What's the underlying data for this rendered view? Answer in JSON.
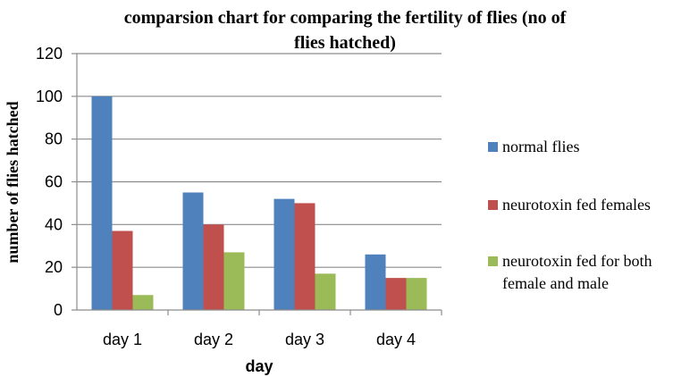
{
  "chart_data": {
    "type": "bar",
    "title": "comparsion chart for comparing the fertility of flies (no of flies hatched)",
    "title_lines": [
      "comparsion chart for comparing the fertility of flies (no of",
      "flies hatched)"
    ],
    "xlabel": "day",
    "ylabel": "number of flies hatched",
    "categories": [
      "day 1",
      "day 2",
      "day 3",
      "day 4"
    ],
    "ylim": [
      0,
      120
    ],
    "yticks": [
      0,
      20,
      40,
      60,
      80,
      100,
      120
    ],
    "grid": true,
    "legend_position": "right",
    "series": [
      {
        "name": "normal flies",
        "name_lines": [
          "normal flies"
        ],
        "color": "#4F81BD",
        "values": [
          100,
          55,
          52,
          26
        ]
      },
      {
        "name": "neurotoxin fed females",
        "name_lines": [
          "neurotoxin fed females"
        ],
        "color": "#C0504D",
        "values": [
          37,
          40,
          50,
          15
        ]
      },
      {
        "name": "neurotoxin fed for both female and male",
        "name_lines": [
          "neurotoxin fed for both",
          "female and male"
        ],
        "color": "#9BBB59",
        "values": [
          7,
          27,
          17,
          15
        ]
      }
    ]
  }
}
